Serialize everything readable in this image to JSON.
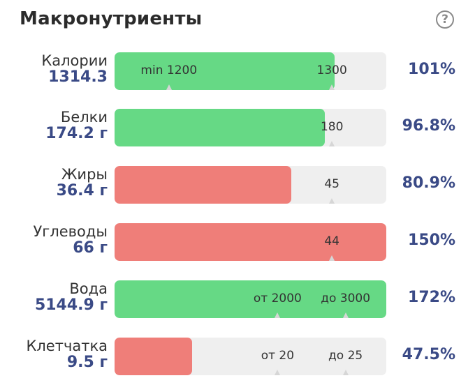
{
  "header": {
    "title": "Макронутриенты",
    "help_icon": "?"
  },
  "colors": {
    "ok": "#66d985",
    "bad": "#ef7e79",
    "track": "#efefef",
    "accent": "#3a4a86"
  },
  "rows": [
    {
      "name": "Калории",
      "value": "1314.3",
      "percent": "101%",
      "fill_pct": 81,
      "status": "ok",
      "markers": [
        {
          "label": "min 1200",
          "pos_pct": 20
        },
        {
          "label": "1300",
          "pos_pct": 80
        }
      ]
    },
    {
      "name": "Белки",
      "value": "174.2 г",
      "percent": "96.8%",
      "fill_pct": 77.5,
      "status": "ok",
      "markers": [
        {
          "label": "180",
          "pos_pct": 80
        }
      ]
    },
    {
      "name": "Жиры",
      "value": "36.4 г",
      "percent": "80.9%",
      "fill_pct": 65,
      "status": "bad",
      "markers": [
        {
          "label": "45",
          "pos_pct": 80
        }
      ]
    },
    {
      "name": "Углеводы",
      "value": "66 г",
      "percent": "150%",
      "fill_pct": 100,
      "status": "bad",
      "markers": [
        {
          "label": "44",
          "pos_pct": 80
        }
      ]
    },
    {
      "name": "Вода",
      "value": "5144.9 г",
      "percent": "172%",
      "fill_pct": 100,
      "status": "ok",
      "markers": [
        {
          "label": "от 2000",
          "pos_pct": 60
        },
        {
          "label": "до 3000",
          "pos_pct": 85
        }
      ]
    },
    {
      "name": "Клетчатка",
      "value": "9.5 г",
      "percent": "47.5%",
      "fill_pct": 28.5,
      "status": "bad",
      "markers": [
        {
          "label": "от 20",
          "pos_pct": 60
        },
        {
          "label": "до 25",
          "pos_pct": 85
        }
      ]
    }
  ]
}
